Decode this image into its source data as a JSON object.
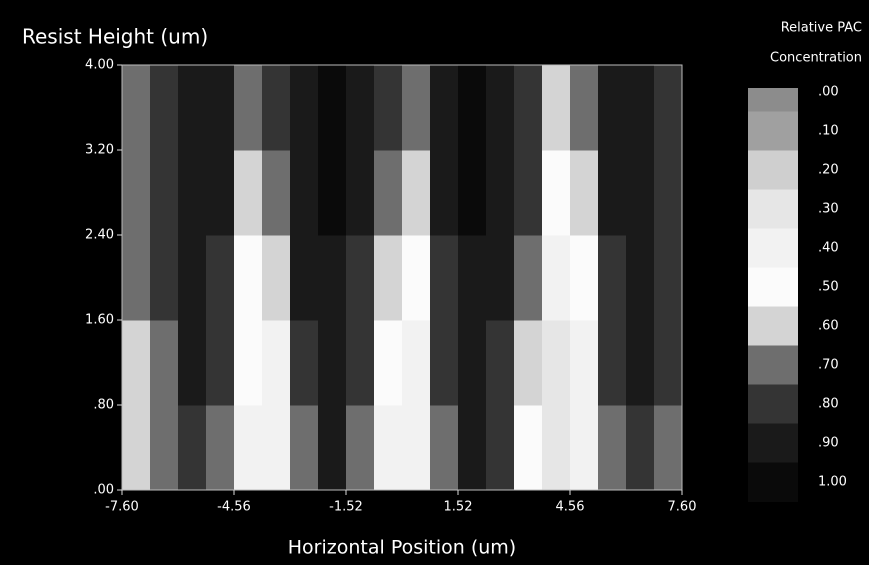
{
  "chart_data": {
    "type": "heatmap",
    "title": "Resist Height (um)",
    "x_label": "Horizontal Position (um)",
    "colorbar_title": [
      "Relative PAC",
      "Concentration"
    ],
    "x": [
      -7.22,
      -6.46,
      -5.7,
      -4.94,
      -4.18,
      -3.42,
      -2.66,
      -1.9,
      -1.14,
      -0.38,
      0.38,
      1.14,
      1.9,
      2.66,
      3.42,
      4.18,
      4.94,
      5.7,
      6.46,
      7.22
    ],
    "y": [
      0.4,
      1.2,
      2.0,
      2.8,
      3.6
    ],
    "z": [
      [
        0.6,
        0.7,
        0.8,
        0.7,
        0.4,
        0.4,
        0.7,
        0.9,
        0.7,
        0.4,
        0.4,
        0.7,
        0.9,
        0.8,
        0.5,
        0.3,
        0.4,
        0.7,
        0.8,
        0.7
      ],
      [
        0.6,
        0.7,
        0.9,
        0.8,
        0.5,
        0.4,
        0.8,
        0.9,
        0.8,
        0.5,
        0.4,
        0.8,
        0.9,
        0.8,
        0.6,
        0.3,
        0.4,
        0.8,
        0.9,
        0.8
      ],
      [
        0.7,
        0.8,
        0.9,
        0.8,
        0.5,
        0.6,
        0.9,
        0.9,
        0.8,
        0.6,
        0.5,
        0.8,
        0.9,
        0.9,
        0.7,
        0.4,
        0.5,
        0.8,
        0.9,
        0.8
      ],
      [
        0.7,
        0.8,
        0.9,
        0.9,
        0.6,
        0.7,
        0.9,
        1.0,
        0.9,
        0.7,
        0.6,
        0.9,
        1.0,
        0.9,
        0.8,
        0.5,
        0.6,
        0.9,
        0.9,
        0.8
      ],
      [
        0.7,
        0.8,
        0.9,
        0.9,
        0.7,
        0.8,
        0.9,
        1.0,
        0.9,
        0.8,
        0.7,
        0.9,
        1.0,
        0.9,
        0.8,
        0.6,
        0.7,
        0.9,
        0.9,
        0.8
      ]
    ],
    "xlim": [
      -7.6,
      7.6
    ],
    "ylim": [
      0,
      4
    ],
    "xticks": [
      {
        "value": -7.6,
        "label": "-7.60"
      },
      {
        "value": -4.56,
        "label": "-4.56"
      },
      {
        "value": -1.52,
        "label": "-1.52"
      },
      {
        "value": 1.52,
        "label": "1.52"
      },
      {
        "value": 4.56,
        "label": "4.56"
      },
      {
        "value": 7.6,
        "label": "7.60"
      }
    ],
    "yticks": [
      {
        "value": 0,
        "label": ".00"
      },
      {
        "value": 0.8,
        "label": ".80"
      },
      {
        "value": 1.6,
        "label": "1.60"
      },
      {
        "value": 2.4,
        "label": "2.40"
      },
      {
        "value": 3.2,
        "label": "3.20"
      },
      {
        "value": 4,
        "label": "4.00"
      }
    ],
    "colorbar_ticks": [
      {
        "value": 0,
        "label": ".00"
      },
      {
        "value": 0.1,
        "label": ".10"
      },
      {
        "value": 0.2,
        "label": ".20"
      },
      {
        "value": 0.3,
        "label": ".30"
      },
      {
        "value": 0.4,
        "label": ".40"
      },
      {
        "value": 0.5,
        "label": ".50"
      },
      {
        "value": 0.6,
        "label": ".60"
      },
      {
        "value": 0.7,
        "label": ".70"
      },
      {
        "value": 0.8,
        "label": ".80"
      },
      {
        "value": 0.9,
        "label": ".90"
      },
      {
        "value": 1,
        "label": "1.00"
      }
    ],
    "colors": [
      "#8c8c8c",
      "#a0a0a0",
      "#cfcfcf",
      "#e6e6e6",
      "#f2f2f2",
      "#fbfbfb",
      "#d4d4d4",
      "#6e6e6e",
      "#343434",
      "#1a1a1a",
      "#0a0a0a"
    ]
  }
}
